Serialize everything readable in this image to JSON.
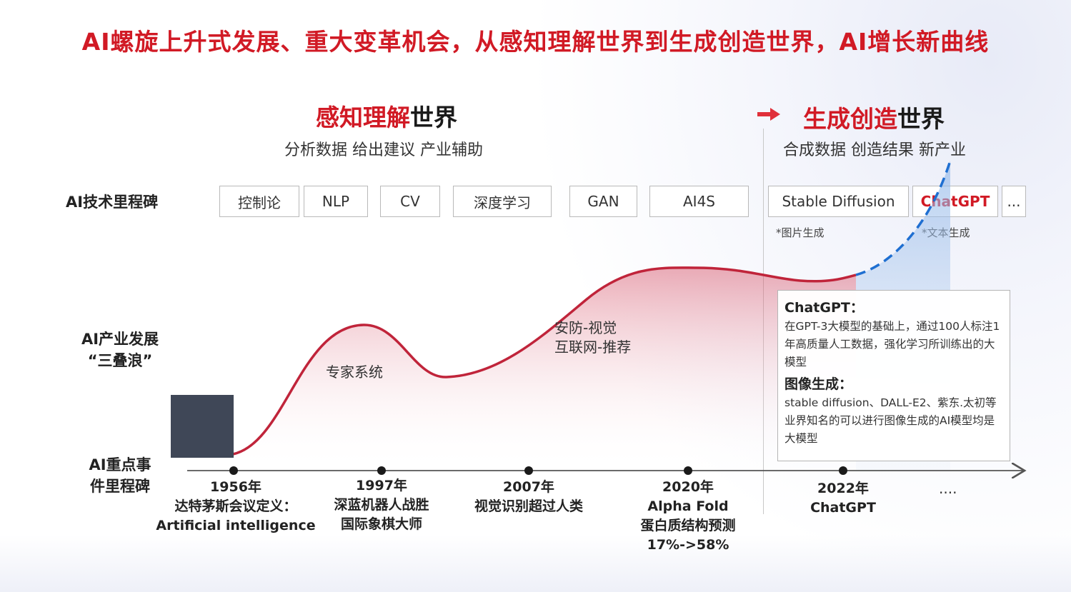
{
  "main_title": "AI螺旋上升式发展、重大变革机会，从感知理解世界到生成创造世界，AI增长新曲线",
  "left_section": {
    "title_red": "感知理解",
    "title_black": "世界",
    "subtitle": "分析数据 给出建议 产业辅助"
  },
  "right_section": {
    "title_red": "生成创造",
    "title_black": "世界",
    "subtitle": "合成数据 创造结果 新产业"
  },
  "row_labels": {
    "tech": "AI技术里程碑",
    "industry_line1": "AI产业发展",
    "industry_line2": "“三叠浪”",
    "events_line1": "AI重点事",
    "events_line2": "件里程碑"
  },
  "tech_milestones": [
    "控制论",
    "NLP",
    "CV",
    "深度学习",
    "GAN",
    "AI4S",
    "Stable Diffusion",
    "ChatGPT",
    "..."
  ],
  "milestone_notes": {
    "stable_diffusion": "*图片生成",
    "chatgpt": "*文本生成"
  },
  "wave_labels": {
    "wave1": "专家系统",
    "wave2_line1": "安防-视觉",
    "wave2_line2": "互联网-推荐"
  },
  "info_box": {
    "heading1": "ChatGPT：",
    "text1": "在GPT-3大模型的基础上，通过100人标注1年高质量人工数据，强化学习所训练出的大模型",
    "heading2": "图像生成：",
    "text2": "stable diffusion、DALL-E2、紫东.太初等业界知名的可以进行图像生成的AI模型均是大模型"
  },
  "events": [
    {
      "year": "1956年",
      "line1": "达特茅斯会议定义：",
      "line2": "Artificial intelligence"
    },
    {
      "year": "1997年",
      "line1": "深蓝机器人战胜",
      "line2": "国际象棋大师"
    },
    {
      "year": "2007年",
      "line1": "视觉识别超过人类"
    },
    {
      "year": "2020年",
      "line1": "Alpha Fold",
      "line2": "蛋白质结构预测",
      "line3": "17%->58%"
    },
    {
      "year": "2022年",
      "line1": "ChatGPT"
    }
  ],
  "events_more": "....",
  "colors": {
    "accent_red": "#d11a25",
    "curve_red": "#c0243a",
    "dashed_blue": "#1f6fd1",
    "dark_block": "#3f4757"
  }
}
